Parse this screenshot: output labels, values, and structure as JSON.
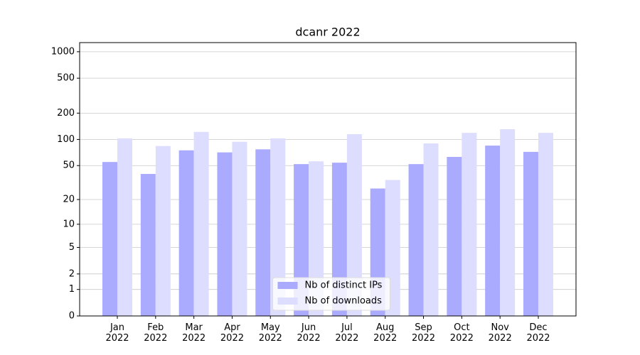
{
  "chart_data": {
    "type": "bar",
    "title": "dcanr 2022",
    "categories": [
      "Jan\n2022",
      "Feb\n2022",
      "Mar\n2022",
      "Apr\n2022",
      "May\n2022",
      "Jun\n2022",
      "Jul\n2022",
      "Aug\n2022",
      "Sep\n2022",
      "Oct\n2022",
      "Nov\n2022",
      "Dec\n2022"
    ],
    "series": [
      {
        "name": "Nb of distinct IPs",
        "color": "#aaaaff",
        "values": [
          55,
          40,
          75,
          71,
          77,
          52,
          54,
          27,
          52,
          63,
          85,
          72
        ]
      },
      {
        "name": "Nb of downloads",
        "color": "#ddddff",
        "values": [
          103,
          84,
          122,
          94,
          103,
          56,
          115,
          34,
          90,
          119,
          131,
          119
        ]
      }
    ],
    "yscale": "log1p",
    "ylim": [
      0,
      1270
    ],
    "yticks": [
      0,
      1,
      2,
      5,
      10,
      20,
      50,
      100,
      200,
      500,
      1000
    ],
    "grid": true,
    "legend": "lower center"
  }
}
